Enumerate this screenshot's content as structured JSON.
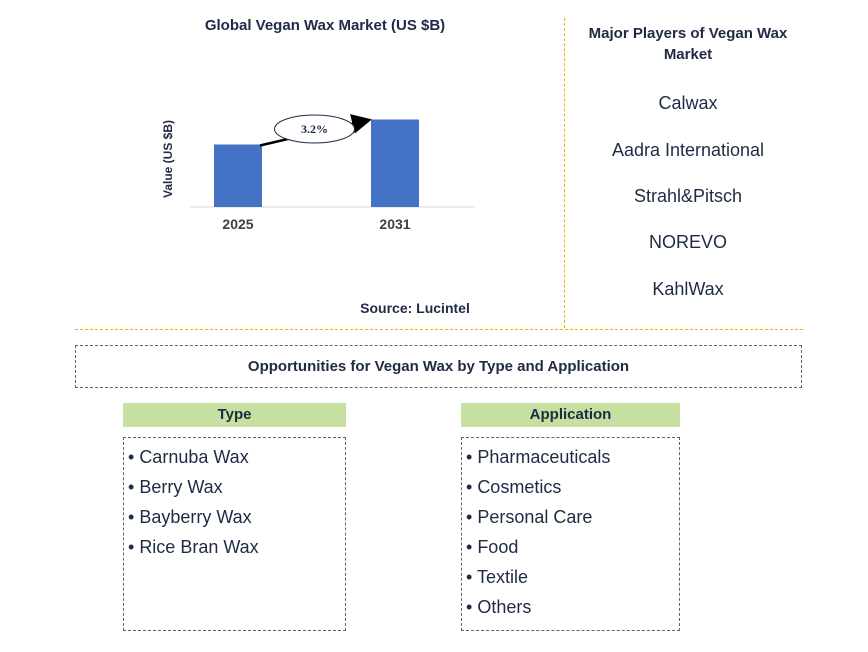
{
  "chart_data": {
    "type": "bar",
    "title": "Global Vegan Wax Market (US $B)",
    "ylabel": "Value (US $B)",
    "xlabel": "",
    "categories": [
      "2025",
      "2031"
    ],
    "values": [
      1.0,
      1.4
    ],
    "ylim": [
      0,
      1.6
    ],
    "annotation": "3.2%",
    "bar_color": "#4472c4",
    "grid": false
  },
  "source": "Source: Lucintel",
  "players": {
    "title": "Major Players of Vegan Wax Market",
    "items": [
      "Calwax",
      "Aadra International",
      "Strahl&Pitsch",
      "NOREVO",
      "KahlWax"
    ]
  },
  "opportunities": {
    "title": "Opportunities for Vegan Wax by Type and Application",
    "type": {
      "header": "Type",
      "items": [
        "Carnuba Wax",
        "Berry Wax",
        "Bayberry Wax",
        "Rice Bran Wax"
      ]
    },
    "application": {
      "header": "Application",
      "items": [
        "Pharmaceuticals",
        "Cosmetics",
        "Personal Care",
        "Food",
        "Textile",
        "Others"
      ]
    }
  },
  "colors": {
    "header_fill": "#c6e0a2",
    "divider": "#f0b400",
    "text": "#1f2a44"
  }
}
